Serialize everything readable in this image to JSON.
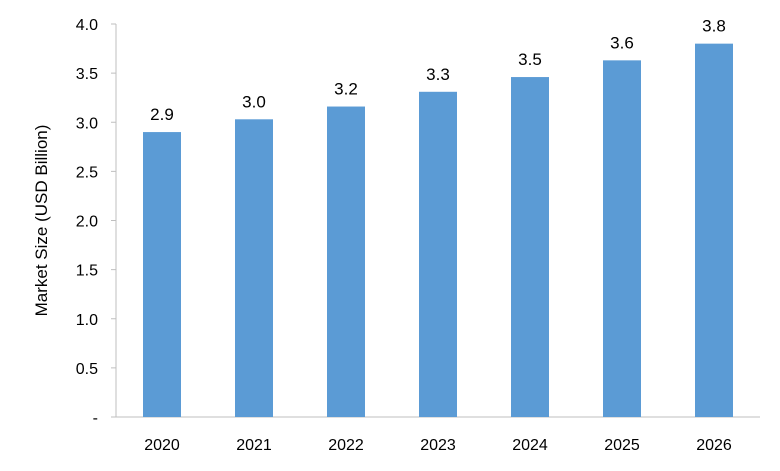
{
  "chart_data": {
    "type": "bar",
    "categories": [
      "2020",
      "2021",
      "2022",
      "2023",
      "2024",
      "2025",
      "2026"
    ],
    "values": [
      2.9,
      3.03,
      3.16,
      3.31,
      3.46,
      3.63,
      3.8
    ],
    "data_labels": [
      "2.9",
      "3.0",
      "3.2",
      "3.3",
      "3.5",
      "3.6",
      "3.8"
    ],
    "title": "",
    "xlabel": "",
    "ylabel": "Market Size (USD Billion)",
    "ylim": [
      0,
      4.0
    ],
    "y_ticks": [
      0,
      0.5,
      1.0,
      1.5,
      2.0,
      2.5,
      3.0,
      3.5,
      4.0
    ],
    "y_tick_labels": [
      "-",
      "0.5",
      "1.0",
      "1.5",
      "2.0",
      "2.5",
      "3.0",
      "3.5",
      "4.0"
    ],
    "grid": false,
    "legend": "none",
    "bar_color": "#5b9bd5"
  }
}
